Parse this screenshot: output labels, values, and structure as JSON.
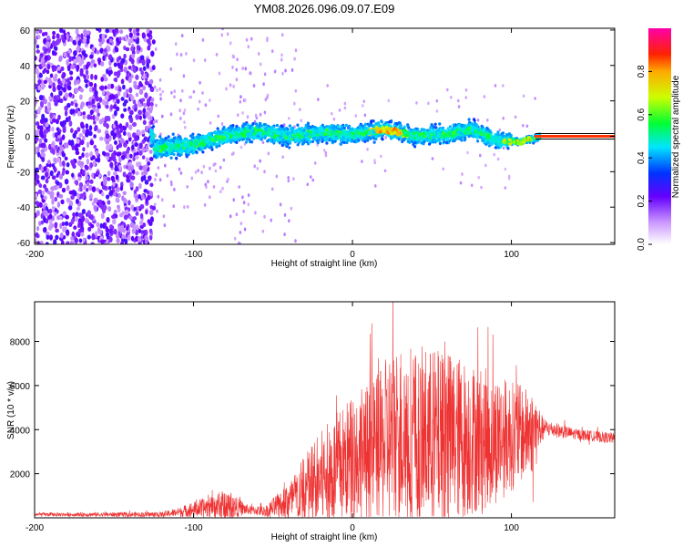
{
  "title": "YM08.2026.096.09.07.E09",
  "chart_data": [
    {
      "type": "heatmap",
      "name": "spectrogram",
      "xlabel": "Height of straight line (km)",
      "ylabel": "Frequency (Hz)",
      "xlim": [
        -200,
        165
      ],
      "ylim": [
        -61,
        61
      ],
      "xticks": [
        -200,
        -100,
        0,
        100
      ],
      "yticks": [
        -60,
        -40,
        -20,
        0,
        20,
        40,
        60
      ],
      "colorbar": {
        "label": "Normalized spectral amplitude",
        "range": [
          0,
          1
        ],
        "ticks": [
          0.0,
          0.2,
          0.4,
          0.6,
          0.8
        ],
        "tick_labels": [
          "0.0",
          "0.2",
          "0.4",
          "0.6",
          "0.8"
        ]
      },
      "ridge": [
        {
          "x": -125,
          "y": -7
        },
        {
          "x": -100,
          "y": -5
        },
        {
          "x": -80,
          "y": 0
        },
        {
          "x": -60,
          "y": 3
        },
        {
          "x": -40,
          "y": 0
        },
        {
          "x": -20,
          "y": 2
        },
        {
          "x": 0,
          "y": 1
        },
        {
          "x": 20,
          "y": 4
        },
        {
          "x": 40,
          "y": 0
        },
        {
          "x": 60,
          "y": 1
        },
        {
          "x": 75,
          "y": 4
        },
        {
          "x": 90,
          "y": -2
        },
        {
          "x": 105,
          "y": -3
        },
        {
          "x": 120,
          "y": 0
        },
        {
          "x": 165,
          "y": 0
        }
      ],
      "noise_region_x": [
        -200,
        -125
      ],
      "line_region_x": [
        115,
        165
      ]
    },
    {
      "type": "line",
      "name": "snr",
      "xlabel": "Height of straight line (km)",
      "ylabel": "SNR (10 * v/v)",
      "xlim": [
        -200,
        165
      ],
      "ylim": [
        0,
        9800
      ],
      "xticks": [
        -200,
        -100,
        0,
        100
      ],
      "yticks": [
        2000,
        4000,
        6000,
        8000
      ],
      "color": "#ee3333",
      "envelope": [
        {
          "x": -200,
          "base": 150,
          "amp": 80
        },
        {
          "x": -120,
          "base": 150,
          "amp": 120
        },
        {
          "x": -110,
          "base": 250,
          "amp": 200
        },
        {
          "x": -90,
          "base": 500,
          "amp": 500
        },
        {
          "x": -80,
          "base": 600,
          "amp": 700
        },
        {
          "x": -65,
          "base": 350,
          "amp": 200
        },
        {
          "x": -55,
          "base": 300,
          "amp": 250
        },
        {
          "x": -40,
          "base": 700,
          "amp": 900
        },
        {
          "x": -25,
          "base": 1500,
          "amp": 2000
        },
        {
          "x": -10,
          "base": 2200,
          "amp": 2600
        },
        {
          "x": 0,
          "base": 2800,
          "amp": 2800
        },
        {
          "x": 20,
          "base": 3300,
          "amp": 3500
        },
        {
          "x": 25,
          "base": 3800,
          "amp": 4200
        },
        {
          "x": 60,
          "base": 3600,
          "amp": 4000
        },
        {
          "x": 90,
          "base": 3600,
          "amp": 3000
        },
        {
          "x": 115,
          "base": 3900,
          "amp": 1800
        },
        {
          "x": 120,
          "base": 4100,
          "amp": 400
        },
        {
          "x": 140,
          "base": 3800,
          "amp": 250
        },
        {
          "x": 165,
          "base": 3600,
          "amp": 250
        }
      ]
    }
  ]
}
